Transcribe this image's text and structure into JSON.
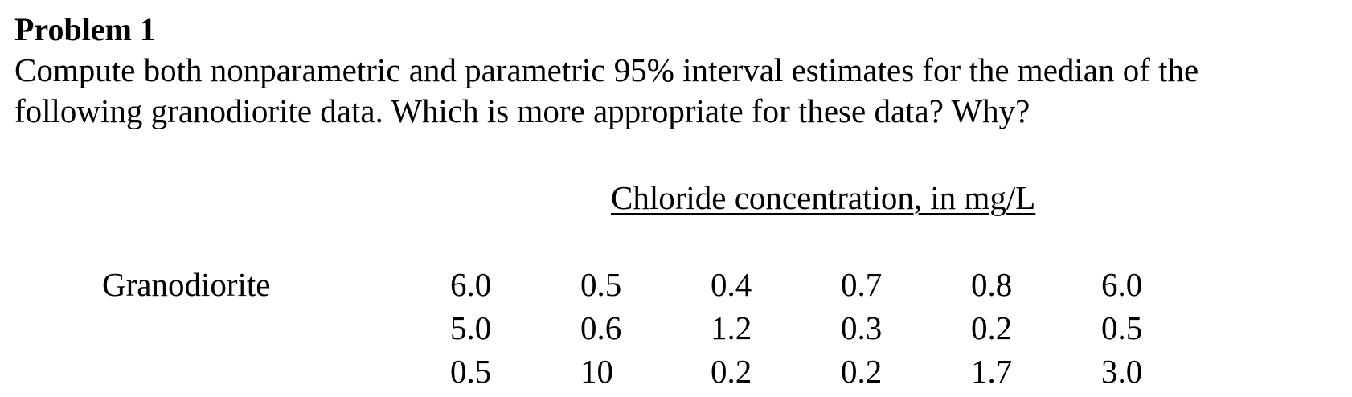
{
  "problem": {
    "title": "Problem 1",
    "text_lines": [
      "Compute both nonparametric and parametric 95% interval estimates for the median of the",
      "following granodiorite data. Which is more appropriate for these data? Why?"
    ]
  },
  "table": {
    "caption": "Chloride concentration, in mg/L",
    "row_label": "Granodiorite",
    "rows": [
      [
        "6.0",
        "0.5",
        "0.4",
        "0.7",
        "0.8",
        "6.0"
      ],
      [
        "5.0",
        "0.6",
        "1.2",
        "0.3",
        "0.2",
        "0.5"
      ],
      [
        "0.5",
        "10",
        "0.2",
        "0.2",
        "1.7",
        "3.0"
      ]
    ]
  }
}
